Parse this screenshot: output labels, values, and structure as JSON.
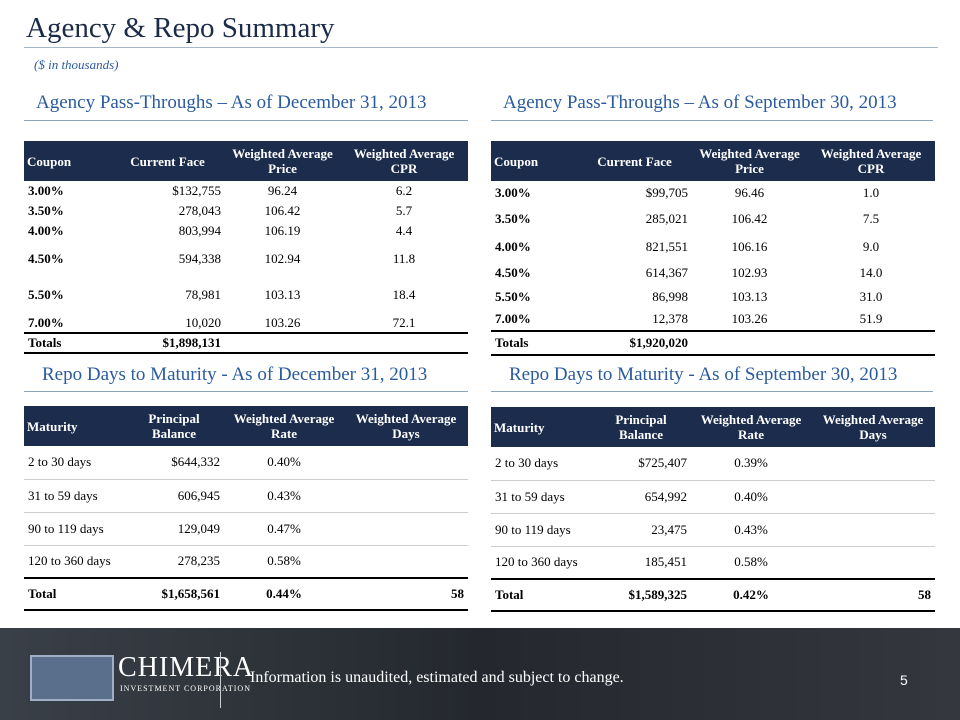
{
  "header": {
    "title": "Agency & Repo Summary",
    "subtitle": "($ in thousands)"
  },
  "agency_tables": [
    {
      "title": "Agency Pass-Throughs – As of December 31, 2013",
      "columns": [
        "Coupon",
        "Current Face",
        "Weighted Average Price",
        "Weighted Average CPR"
      ],
      "rows": [
        [
          "3.00%",
          "$132,755",
          "96.24",
          "6.2"
        ],
        [
          "3.50%",
          "278,043",
          "106.42",
          "5.7"
        ],
        [
          "4.00%",
          "803,994",
          "106.19",
          "4.4"
        ],
        [
          "4.50%",
          "594,338",
          "102.94",
          "11.8"
        ],
        [
          "5.50%",
          "78,981",
          "103.13",
          "18.4"
        ],
        [
          "7.00%",
          "10,020",
          "103.26",
          "72.1"
        ]
      ],
      "totals": {
        "label": "Totals",
        "face": "$1,898,131"
      }
    },
    {
      "title": "Agency Pass-Throughs – As of September 30, 2013",
      "columns": [
        "Coupon",
        "Current Face",
        "Weighted Average Price",
        "Weighted Average CPR"
      ],
      "rows": [
        [
          "3.00%",
          "$99,705",
          "96.46",
          "1.0"
        ],
        [
          "3.50%",
          "285,021",
          "106.42",
          "7.5"
        ],
        [
          "4.00%",
          "821,551",
          "106.16",
          "9.0"
        ],
        [
          "4.50%",
          "614,367",
          "102.93",
          "14.0"
        ],
        [
          "5.50%",
          "86,998",
          "103.13",
          "31.0"
        ],
        [
          "7.00%",
          "12,378",
          "103.26",
          "51.9"
        ]
      ],
      "totals": {
        "label": "Totals",
        "face": "$1,920,020"
      }
    }
  ],
  "repo_tables": [
    {
      "title": "Repo Days to Maturity - As of December 31, 2013",
      "columns": [
        "Maturity",
        "Principal Balance",
        "Weighted Average Rate",
        "Weighted Average Days"
      ],
      "rows": [
        [
          "2 to 30 days",
          "$644,332",
          "0.40%"
        ],
        [
          "31 to 59 days",
          "606,945",
          "0.43%"
        ],
        [
          "90 to 119 days",
          "129,049",
          "0.47%"
        ],
        [
          "120 to 360 days",
          "278,235",
          "0.58%"
        ]
      ],
      "totals": [
        "Total",
        "$1,658,561",
        "0.44%",
        "58"
      ]
    },
    {
      "title": "Repo Days to Maturity - As of September 30, 2013",
      "columns": [
        "Maturity",
        "Principal Balance",
        "Weighted Average Rate",
        "Weighted Average Days"
      ],
      "rows": [
        [
          "2 to 30 days",
          "$725,407",
          "0.39%"
        ],
        [
          "31 to 59 days",
          "654,992",
          "0.40%"
        ],
        [
          "90 to 119 days",
          "23,475",
          "0.43%"
        ],
        [
          "120 to 360 days",
          "185,451",
          "0.58%"
        ]
      ],
      "totals": [
        "Total",
        "$1,589,325",
        "0.42%",
        "58"
      ]
    }
  ],
  "footer": {
    "logo_name": "CHIMERA",
    "logo_sub": "INVESTMENT CORPORATION",
    "note": "Information is unaudited, estimated and subject to change.",
    "page": "5"
  }
}
